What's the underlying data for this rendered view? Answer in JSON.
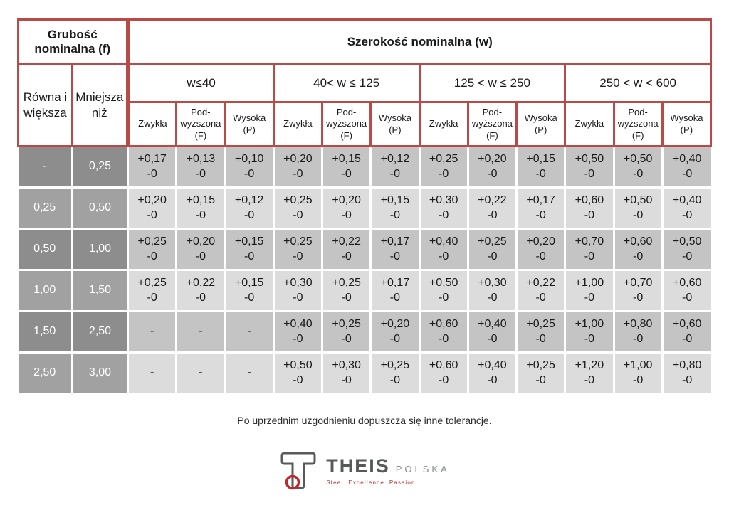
{
  "table": {
    "thickness_title": "Grubość nominalna (f)",
    "width_title": "Szerokość nominalna (w)",
    "sub_headers": [
      "Równa i większa",
      "Mniejsza niż"
    ],
    "width_groups": [
      "w≤40",
      "40< w ≤ 125",
      "125 < w ≤ 250",
      "250 < w < 600"
    ],
    "quality_headers": [
      "Zwykła",
      "Pod-wyższona (F)",
      "Wysoka (P)"
    ],
    "rows": [
      {
        "from": "-",
        "to": "0,25",
        "values": [
          "+0,17\n-0",
          "+0,13\n-0",
          "+0,10\n-0",
          "+0,20\n-0",
          "+0,15\n-0",
          "+0,12\n-0",
          "+0,25\n-0",
          "+0,20\n-0",
          "+0,15\n-0",
          "+0,50\n-0",
          "+0,50\n-0",
          "+0,40\n-0"
        ]
      },
      {
        "from": "0,25",
        "to": "0,50",
        "values": [
          "+0,20\n-0",
          "+0,15\n-0",
          "+0,12\n-0",
          "+0,25\n-0",
          "+0,20\n-0",
          "+0,15\n-0",
          "+0,30\n-0",
          "+0,22\n-0",
          "+0,17\n-0",
          "+0,60\n-0",
          "+0,50\n-0",
          "+0,40\n-0"
        ]
      },
      {
        "from": "0,50",
        "to": "1,00",
        "values": [
          "+0,25\n-0",
          "+0,20\n-0",
          "+0,15\n-0",
          "+0,25\n-0",
          "+0,22\n-0",
          "+0,17\n-0",
          "+0,40\n-0",
          "+0,25\n-0",
          "+0,20\n-0",
          "+0,70\n-0",
          "+0,60\n-0",
          "+0,50\n-0"
        ]
      },
      {
        "from": "1,00",
        "to": "1,50",
        "values": [
          "+0,25\n-0",
          "+0,22\n-0",
          "+0,15\n-0",
          "+0,30\n-0",
          "+0,25\n-0",
          "+0,17\n-0",
          "+0,50\n-0",
          "+0,30\n-0",
          "+0,22\n-0",
          "+1,00\n-0",
          "+0,70\n-0",
          "+0,60\n-0"
        ]
      },
      {
        "from": "1,50",
        "to": "2,50",
        "values": [
          "-",
          "-",
          "-",
          "+0,40\n-0",
          "+0,25\n-0",
          "+0,20\n-0",
          "+0,60\n-0",
          "+0,40\n-0",
          "+0,25\n-0",
          "+1,00\n-0",
          "+0,80\n-0",
          "+0,60\n-0"
        ]
      },
      {
        "from": "2,50",
        "to": "3,00",
        "values": [
          "-",
          "-",
          "-",
          "+0,50\n-0",
          "+0,30\n-0",
          "+0,25\n-0",
          "+0,60\n-0",
          "+0,40\n-0",
          "+0,25\n-0",
          "+1,20\n-0",
          "+1,00\n-0",
          "+0,80\n-0"
        ]
      }
    ]
  },
  "footnote": "Po uprzednim uzgodnieniu dopuszcza się inne tolerancje.",
  "logo": {
    "brand": "THEIS",
    "region": "POLSKA",
    "tagline": "Steel. Excellence. Passion."
  },
  "colors": {
    "border_red": "#b94a48",
    "row_dark": "#c4c4c4",
    "row_light": "#dcdcdc",
    "fcol_dark": "#8d8d8d",
    "fcol_light": "#a1a1a1",
    "logo_gray": "#58595b",
    "logo_light_gray": "#8a8c8e",
    "logo_red": "#c0272d"
  }
}
